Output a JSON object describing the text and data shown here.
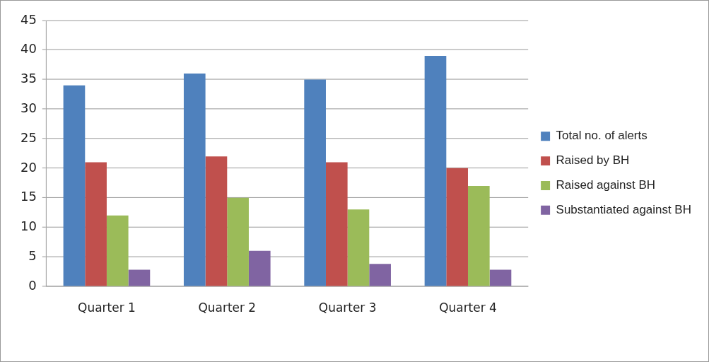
{
  "chart_data": {
    "type": "bar",
    "categories": [
      "Quarter 1",
      "Quarter 2",
      "Quarter 3",
      "Quarter 4"
    ],
    "series": [
      {
        "name": "Total no. of alerts",
        "color": "#4f81bd",
        "values": [
          34,
          36,
          35,
          39
        ]
      },
      {
        "name": "Raised by BH",
        "color": "#c0504d",
        "values": [
          21,
          22,
          21,
          20
        ]
      },
      {
        "name": "Raised against BH",
        "color": "#9bbb59",
        "values": [
          12,
          15,
          13,
          17
        ]
      },
      {
        "name": "Substantiated against BH",
        "color": "#8064a2",
        "values": [
          2.8,
          6,
          3.8,
          2.8
        ]
      }
    ],
    "ylim": [
      0,
      45
    ],
    "yticks": [
      0,
      5,
      10,
      15,
      20,
      25,
      30,
      35,
      40,
      45
    ],
    "grid": "y",
    "legend": "right"
  }
}
